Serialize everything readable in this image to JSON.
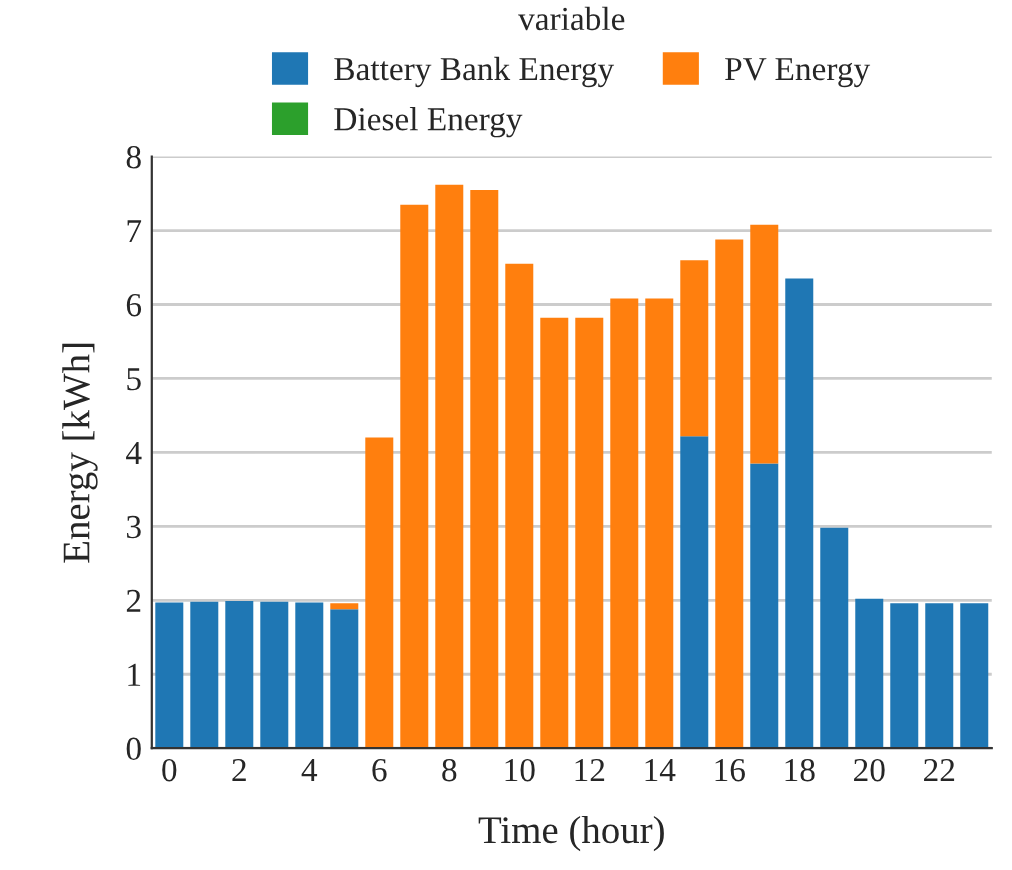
{
  "chart_data": {
    "type": "bar",
    "stacked": true,
    "xlabel": "Time (hour)",
    "ylabel": "Energy [kWh]",
    "legend_title": "variable",
    "legend": "top",
    "x": [
      0,
      1,
      2,
      3,
      4,
      5,
      6,
      7,
      8,
      9,
      10,
      11,
      12,
      13,
      14,
      15,
      16,
      17,
      18,
      19,
      20,
      21,
      22,
      23
    ],
    "xlim": [
      -0.5,
      23.5
    ],
    "xticks": [
      0,
      2,
      4,
      6,
      8,
      10,
      12,
      14,
      16,
      18,
      20,
      22
    ],
    "ylim": [
      0,
      8
    ],
    "yticks": [
      0,
      1,
      2,
      3,
      4,
      5,
      6,
      7,
      8
    ],
    "grid": "y",
    "series": [
      {
        "name": "Battery Bank Energy",
        "color": "#1f77b4",
        "values": [
          1.97,
          1.98,
          1.99,
          1.98,
          1.97,
          1.88,
          0,
          0,
          0,
          0,
          0,
          0,
          0,
          0,
          0,
          4.22,
          0,
          3.85,
          6.35,
          2.98,
          2.02,
          1.96,
          1.96,
          1.96
        ]
      },
      {
        "name": "PV Energy",
        "color": "#ff7f0e",
        "values": [
          0,
          0,
          0,
          0,
          0,
          0.08,
          4.2,
          7.35,
          7.62,
          7.55,
          6.55,
          5.82,
          5.82,
          6.08,
          6.08,
          2.38,
          6.88,
          3.23,
          0,
          0,
          0,
          0,
          0,
          0
        ]
      },
      {
        "name": "Diesel Energy",
        "color": "#2ca02c",
        "values": [
          0,
          0,
          0,
          0,
          0,
          0,
          0,
          0,
          0,
          0,
          0,
          0,
          0,
          0,
          0,
          0,
          0,
          0,
          0,
          0,
          0,
          0,
          0,
          0
        ]
      }
    ]
  }
}
